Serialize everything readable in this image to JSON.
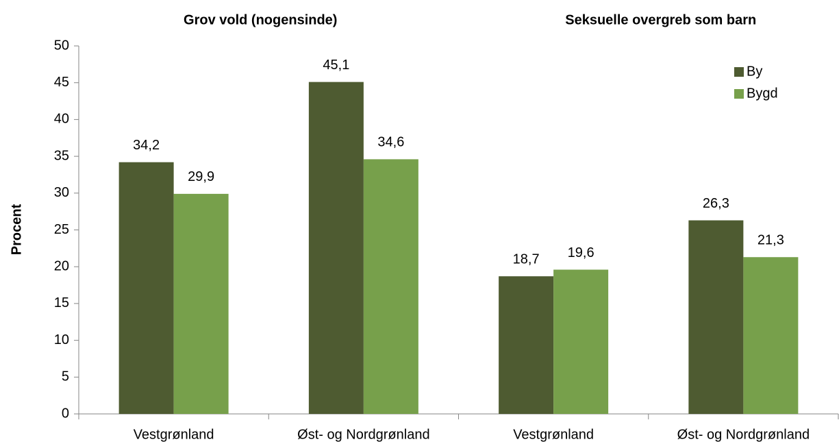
{
  "chart_data": {
    "type": "bar",
    "group_titles": [
      "Grov vold (nogensinde)",
      "Seksuelle overgreb som barn"
    ],
    "categories": [
      "Vestgrønland",
      "Øst- og Nordgrønland",
      "Vestgrønland",
      "Øst- og Nordgrønland"
    ],
    "series": [
      {
        "name": "By",
        "color": "#4e5b31",
        "values": [
          34.2,
          45.1,
          18.7,
          26.3
        ],
        "value_labels": [
          "34,2",
          "45,1",
          "18,7",
          "26,3"
        ]
      },
      {
        "name": "Bygd",
        "color": "#77a04b",
        "values": [
          29.9,
          34.6,
          19.6,
          21.3
        ],
        "value_labels": [
          "29,9",
          "34,6",
          "19,6",
          "21,3"
        ]
      }
    ],
    "ylabel": "Procent",
    "ylim": [
      0,
      50
    ],
    "yticks": [
      0,
      5,
      10,
      15,
      20,
      25,
      30,
      35,
      40,
      45,
      50
    ],
    "grid": false,
    "legend": "upper right"
  }
}
